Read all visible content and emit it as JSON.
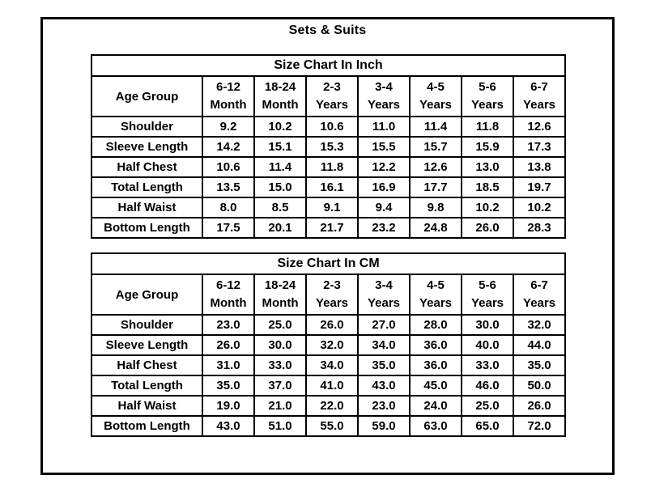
{
  "page": {
    "title": "Sets & Suits"
  },
  "tables": [
    {
      "title": "Size Chart In Inch",
      "age_group_label": "Age Group",
      "age_columns": [
        "6-12\nMonth",
        "18-24\nMonth",
        "2-3\nYears",
        "3-4\nYears",
        "4-5\nYears",
        "5-6\nYears",
        "6-7\nYears"
      ],
      "rows": [
        {
          "label": "Shoulder",
          "values": [
            "9.2",
            "10.2",
            "10.6",
            "11.0",
            "11.4",
            "11.8",
            "12.6"
          ]
        },
        {
          "label": "Sleeve Length",
          "values": [
            "14.2",
            "15.1",
            "15.3",
            "15.5",
            "15.7",
            "15.9",
            "17.3"
          ]
        },
        {
          "label": "Half Chest",
          "values": [
            "10.6",
            "11.4",
            "11.8",
            "12.2",
            "12.6",
            "13.0",
            "13.8"
          ]
        },
        {
          "label": "Total Length",
          "values": [
            "13.5",
            "15.0",
            "16.1",
            "16.9",
            "17.7",
            "18.5",
            "19.7"
          ]
        },
        {
          "label": "Half Waist",
          "values": [
            "8.0",
            "8.5",
            "9.1",
            "9.4",
            "9.8",
            "10.2",
            "10.2"
          ]
        },
        {
          "label": "Bottom Length",
          "values": [
            "17.5",
            "20.1",
            "21.7",
            "23.2",
            "24.8",
            "26.0",
            "28.3"
          ]
        }
      ]
    },
    {
      "title": "Size Chart In CM",
      "age_group_label": "Age Group",
      "age_columns": [
        "6-12\nMonth",
        "18-24\nMonth",
        "2-3\nYears",
        "3-4\nYears",
        "4-5\nYears",
        "5-6\nYears",
        "6-7\nYears"
      ],
      "rows": [
        {
          "label": "Shoulder",
          "values": [
            "23.0",
            "25.0",
            "26.0",
            "27.0",
            "28.0",
            "30.0",
            "32.0"
          ]
        },
        {
          "label": "Sleeve Length",
          "values": [
            "26.0",
            "30.0",
            "32.0",
            "34.0",
            "36.0",
            "40.0",
            "44.0"
          ]
        },
        {
          "label": "Half Chest",
          "values": [
            "31.0",
            "33.0",
            "34.0",
            "35.0",
            "36.0",
            "33.0",
            "35.0"
          ]
        },
        {
          "label": "Total Length",
          "values": [
            "35.0",
            "37.0",
            "41.0",
            "43.0",
            "45.0",
            "46.0",
            "50.0"
          ]
        },
        {
          "label": "Half Waist",
          "values": [
            "19.0",
            "21.0",
            "22.0",
            "23.0",
            "24.0",
            "25.0",
            "26.0"
          ]
        },
        {
          "label": "Bottom Length",
          "values": [
            "43.0",
            "51.0",
            "55.0",
            "59.0",
            "63.0",
            "65.0",
            "72.0"
          ]
        }
      ]
    }
  ],
  "colors": {
    "text": "#000000",
    "border": "#000000",
    "background": "#ffffff"
  }
}
